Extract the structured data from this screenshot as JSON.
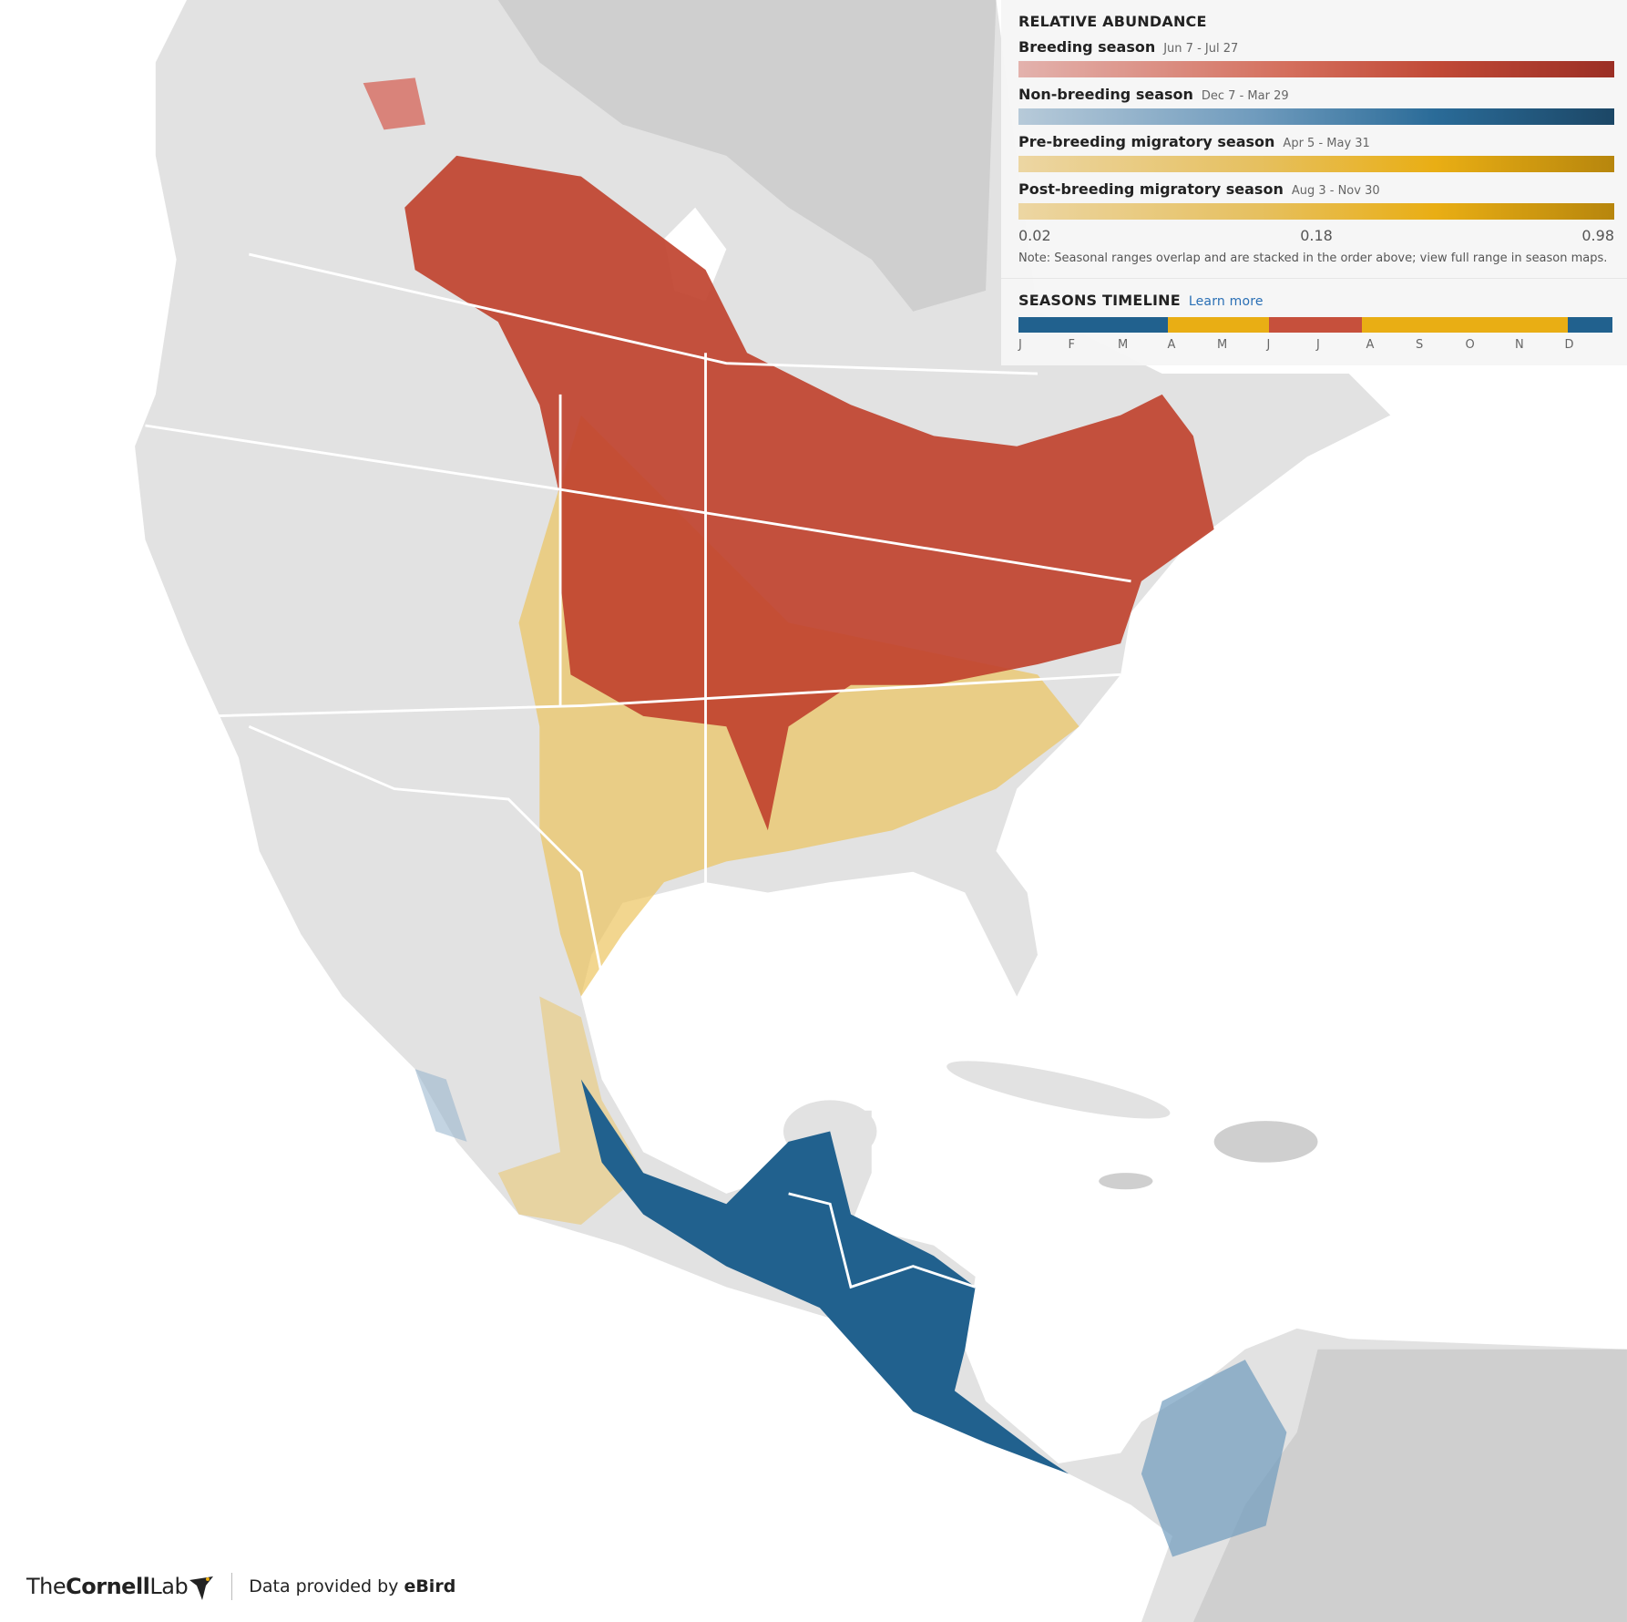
{
  "legend": {
    "title": "RELATIVE ABUNDANCE",
    "seasons": [
      {
        "name": "Breeding season",
        "dates": "Jun 7 - Jul 27"
      },
      {
        "name": "Non-breeding season",
        "dates": "Dec 7 - Mar 29"
      },
      {
        "name": "Pre-breeding migratory season",
        "dates": "Apr 5 - May 31"
      },
      {
        "name": "Post-breeding migratory season",
        "dates": "Aug 3 - Nov 30"
      }
    ],
    "scale_labels": [
      "0.02",
      "0.18",
      "0.98"
    ],
    "note": "Note: Seasonal ranges overlap and are stacked in the order above; view full range in season maps."
  },
  "timeline": {
    "title": "SEASONS TIMELINE",
    "link": "Learn more",
    "months": [
      "J",
      "F",
      "M",
      "A",
      "M",
      "J",
      "J",
      "A",
      "S",
      "O",
      "N",
      "D"
    ]
  },
  "footer": {
    "brand_prefix": "The",
    "brand_bold": "Cornell",
    "brand_suffix": "Lab",
    "credit": "Data provided by",
    "credit_bold": "eBird"
  }
}
